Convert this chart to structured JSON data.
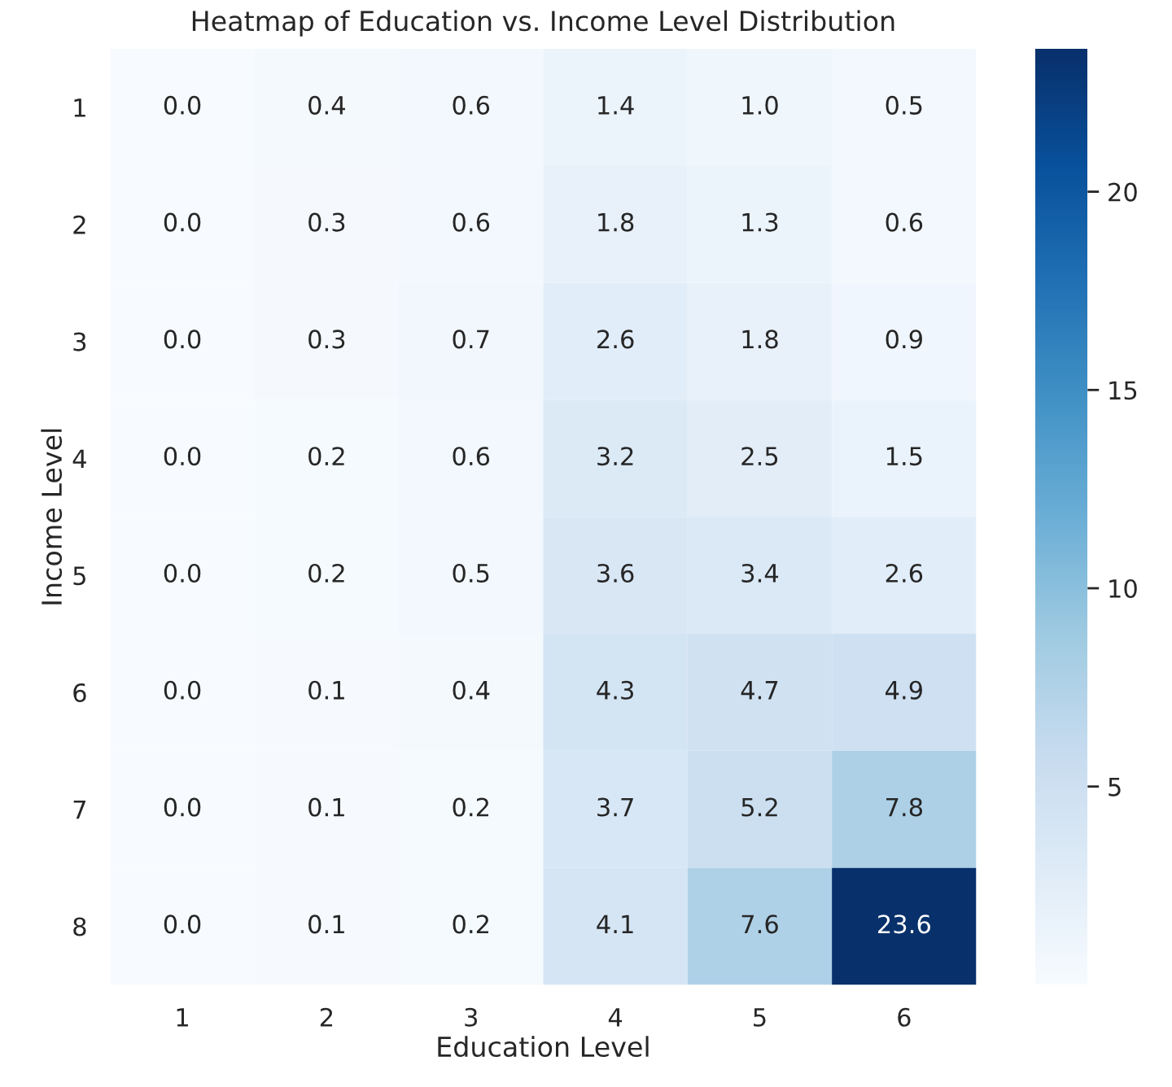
{
  "chart_data": {
    "type": "heatmap",
    "title": "Heatmap of Education vs. Income Level Distribution",
    "xlabel": "Education Level",
    "ylabel": "Income Level",
    "categories": [
      "1",
      "2",
      "3",
      "4",
      "5",
      "6"
    ],
    "y_categories": [
      "1",
      "2",
      "3",
      "4",
      "5",
      "6",
      "7",
      "8"
    ],
    "cells": [
      [
        0.0,
        0.4,
        0.6,
        1.4,
        1.0,
        0.5
      ],
      [
        0.0,
        0.3,
        0.6,
        1.8,
        1.3,
        0.6
      ],
      [
        0.0,
        0.3,
        0.7,
        2.6,
        1.8,
        0.9
      ],
      [
        0.0,
        0.2,
        0.6,
        3.2,
        2.5,
        1.5
      ],
      [
        0.0,
        0.2,
        0.5,
        3.6,
        3.4,
        2.6
      ],
      [
        0.0,
        0.1,
        0.4,
        4.3,
        4.7,
        4.9
      ],
      [
        0.0,
        0.1,
        0.2,
        3.7,
        5.2,
        7.8
      ],
      [
        0.0,
        0.1,
        0.2,
        4.1,
        7.6,
        23.6
      ]
    ],
    "cell_labels": [
      [
        "0.0",
        "0.4",
        "0.6",
        "1.4",
        "1.0",
        "0.5"
      ],
      [
        "0.0",
        "0.3",
        "0.6",
        "1.8",
        "1.3",
        "0.6"
      ],
      [
        "0.0",
        "0.3",
        "0.7",
        "2.6",
        "1.8",
        "0.9"
      ],
      [
        "0.0",
        "0.2",
        "0.6",
        "3.2",
        "2.5",
        "1.5"
      ],
      [
        "0.0",
        "0.2",
        "0.5",
        "3.6",
        "3.4",
        "2.6"
      ],
      [
        "0.0",
        "0.1",
        "0.4",
        "4.3",
        "4.7",
        "4.9"
      ],
      [
        "0.0",
        "0.1",
        "0.2",
        "3.7",
        "5.2",
        "7.8"
      ],
      [
        "0.0",
        "0.1",
        "0.2",
        "4.1",
        "7.6",
        "23.6"
      ]
    ],
    "clim": [
      0.0,
      23.6
    ],
    "cticks": [
      5,
      10,
      15,
      20
    ]
  }
}
